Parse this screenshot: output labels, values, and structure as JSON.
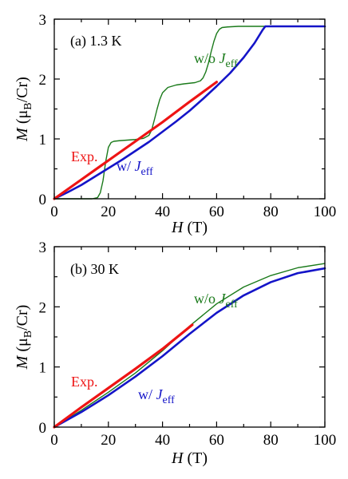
{
  "chart_data": [
    {
      "type": "line",
      "panel_label": "(a) 1.3 K",
      "xlabel_symbol": "H",
      "xlabel_unit": "(T)",
      "ylabel_symbol": "M",
      "ylabel_unit_open": "(μ",
      "ylabel_unit_sub": "B",
      "ylabel_unit_close": "/Cr)",
      "xlim": [
        0,
        100
      ],
      "ylim": [
        0,
        3
      ],
      "xticks": [
        0,
        20,
        40,
        60,
        80,
        100
      ],
      "yticks": [
        0,
        1,
        2,
        3
      ],
      "grid": false,
      "series": [
        {
          "name": "w/o J_eff",
          "label_prefix": "w/o ",
          "label_J": "J",
          "label_sub": "eff",
          "color": "#1a7a1a",
          "width": 1.4,
          "x": [
            0,
            14,
            16,
            17,
            18,
            19,
            20,
            21,
            22,
            24,
            27,
            30,
            33,
            35,
            36,
            37,
            38,
            39,
            40,
            42,
            45,
            48,
            50,
            52,
            54,
            55,
            56,
            57,
            58,
            59,
            60,
            61,
            62,
            64,
            68,
            75,
            85,
            100
          ],
          "y": [
            0,
            0,
            0.02,
            0.1,
            0.3,
            0.62,
            0.86,
            0.94,
            0.96,
            0.97,
            0.98,
            0.99,
            1.01,
            1.06,
            1.15,
            1.32,
            1.5,
            1.66,
            1.77,
            1.86,
            1.9,
            1.92,
            1.93,
            1.94,
            1.97,
            2.02,
            2.12,
            2.27,
            2.46,
            2.63,
            2.76,
            2.83,
            2.86,
            2.87,
            2.88,
            2.88,
            2.88,
            2.88
          ]
        },
        {
          "name": "w/ J_eff",
          "label_prefix": "w/ ",
          "label_J": "J",
          "label_sub": "eff",
          "color": "#1414c8",
          "width": 2.6,
          "x": [
            0,
            5,
            10,
            15,
            20,
            25,
            30,
            35,
            40,
            45,
            50,
            55,
            60,
            65,
            70,
            74,
            77,
            78,
            80,
            90,
            100
          ],
          "y": [
            0,
            0.11,
            0.23,
            0.37,
            0.51,
            0.65,
            0.8,
            0.95,
            1.12,
            1.29,
            1.47,
            1.67,
            1.88,
            2.1,
            2.36,
            2.6,
            2.82,
            2.88,
            2.88,
            2.88,
            2.88
          ]
        },
        {
          "name": "Exp.",
          "label": "Exp.",
          "color": "#ee1414",
          "width": 3.2,
          "x": [
            0,
            10,
            20,
            30,
            40,
            50,
            60
          ],
          "y": [
            0,
            0.32,
            0.64,
            0.96,
            1.28,
            1.62,
            1.95
          ]
        }
      ]
    },
    {
      "type": "line",
      "panel_label": "(b) 30 K",
      "xlabel_symbol": "H",
      "xlabel_unit": "(T)",
      "ylabel_symbol": "M",
      "ylabel_unit_open": "(μ",
      "ylabel_unit_sub": "B",
      "ylabel_unit_close": "/Cr)",
      "xlim": [
        0,
        100
      ],
      "ylim": [
        0,
        3
      ],
      "xticks": [
        0,
        20,
        40,
        60,
        80,
        100
      ],
      "yticks": [
        0,
        1,
        2,
        3
      ],
      "grid": false,
      "series": [
        {
          "name": "w/o J_eff",
          "label_prefix": "w/o ",
          "label_J": "J",
          "label_sub": "eff",
          "color": "#1a7a1a",
          "width": 1.4,
          "x": [
            0,
            10,
            20,
            30,
            40,
            50,
            60,
            70,
            80,
            90,
            100
          ],
          "y": [
            0,
            0.28,
            0.58,
            0.9,
            1.27,
            1.68,
            2.05,
            2.33,
            2.52,
            2.65,
            2.72
          ]
        },
        {
          "name": "w/ J_eff",
          "label_prefix": "w/ ",
          "label_J": "J",
          "label_sub": "eff",
          "color": "#1414c8",
          "width": 2.6,
          "x": [
            0,
            10,
            20,
            30,
            40,
            50,
            60,
            70,
            80,
            90,
            100
          ],
          "y": [
            0,
            0.25,
            0.53,
            0.84,
            1.18,
            1.55,
            1.9,
            2.19,
            2.41,
            2.56,
            2.64
          ]
        },
        {
          "name": "Exp.",
          "label": "Exp.",
          "color": "#ee1414",
          "width": 3.2,
          "x": [
            0,
            10,
            20,
            30,
            40,
            51
          ],
          "y": [
            0,
            0.33,
            0.65,
            0.97,
            1.3,
            1.7
          ]
        }
      ]
    }
  ]
}
